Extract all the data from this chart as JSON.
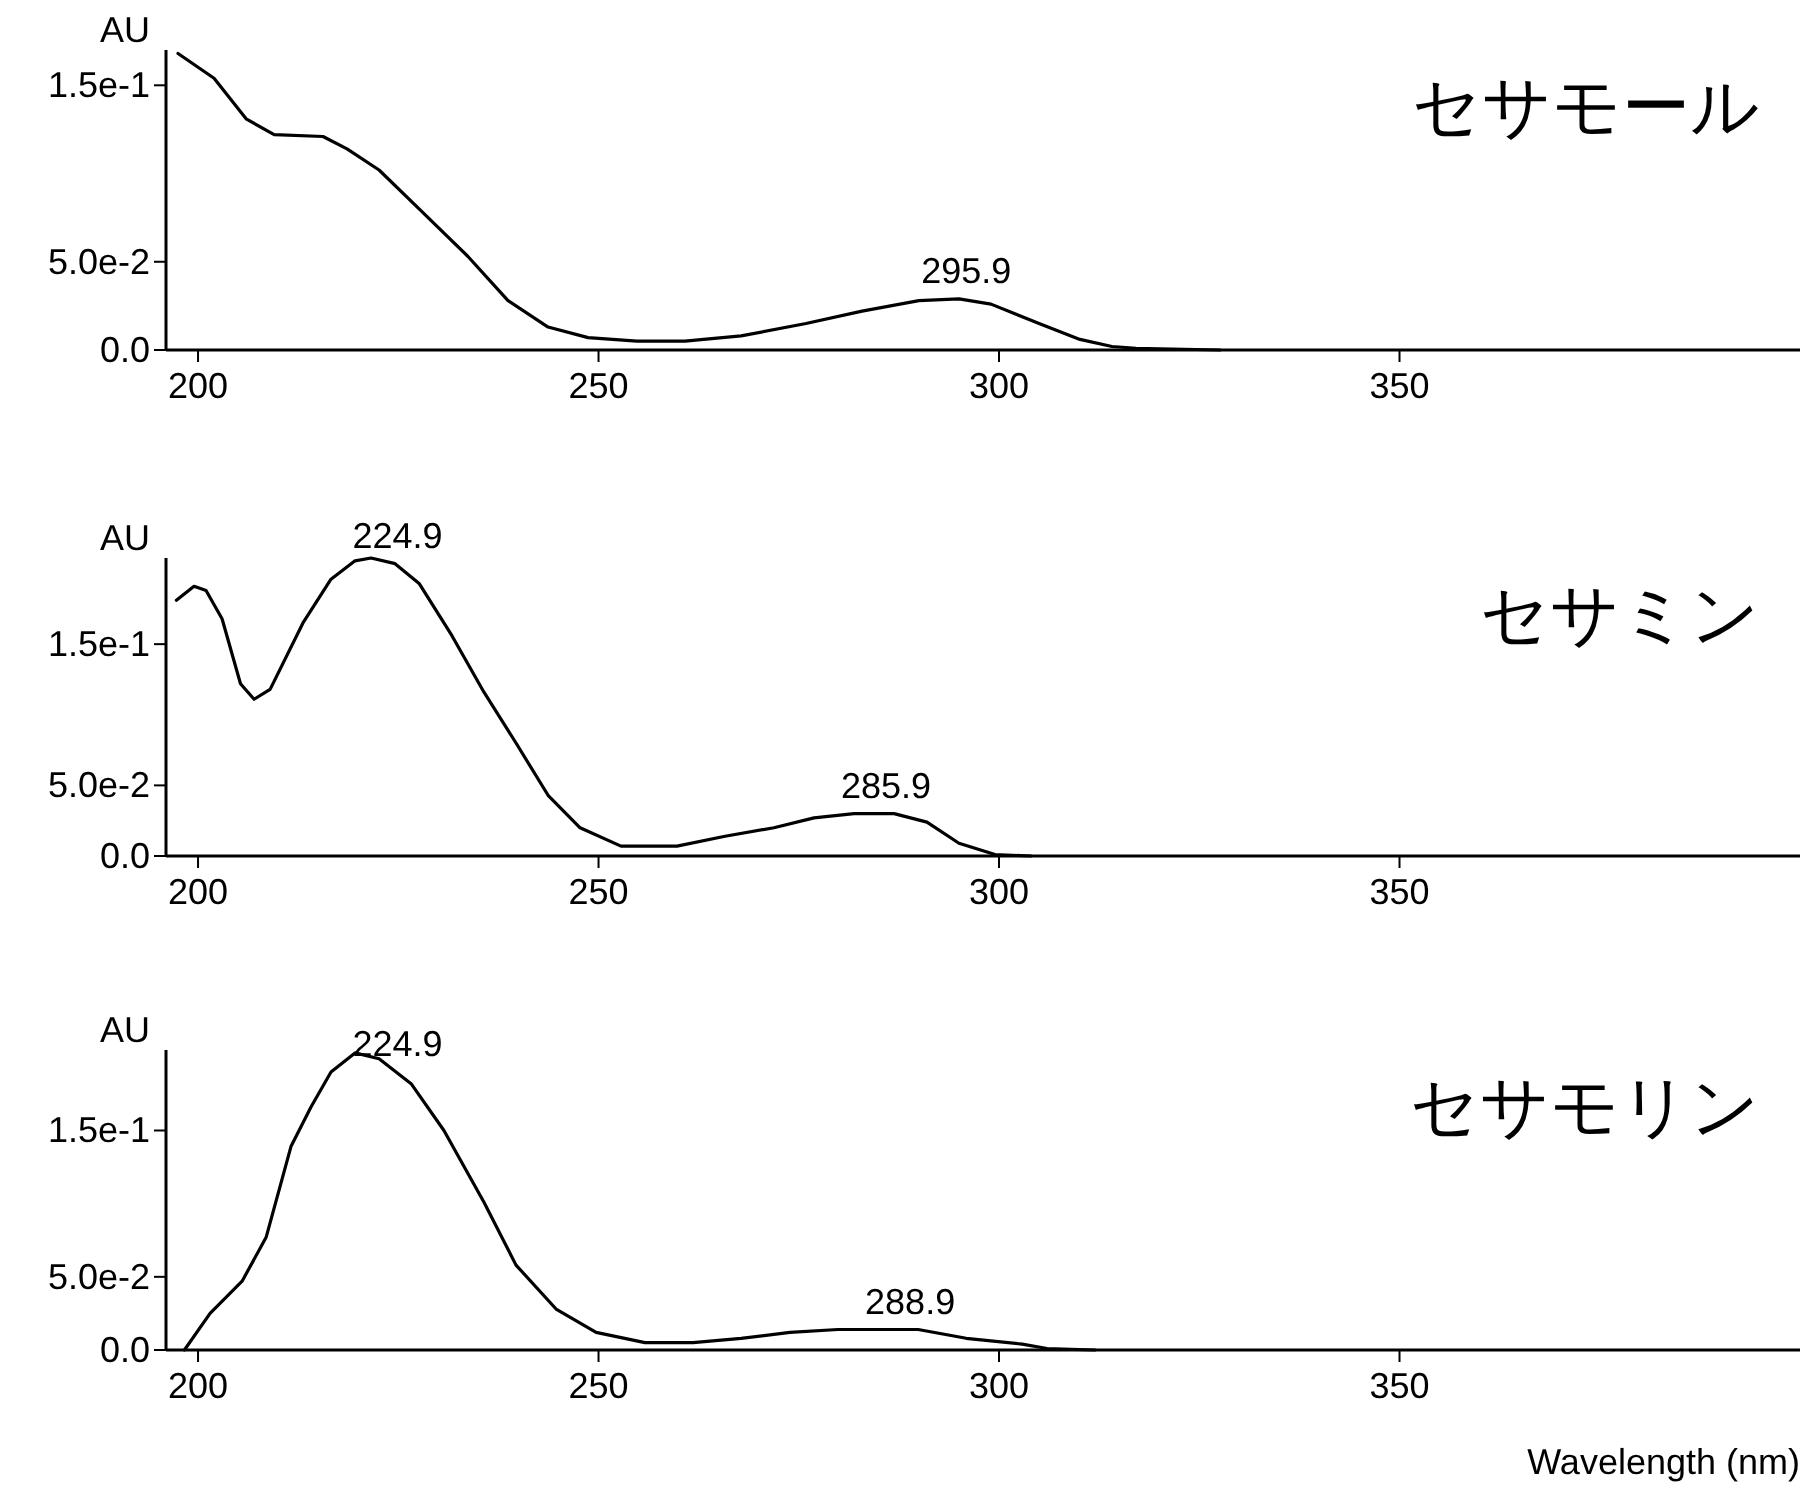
{
  "chart_data": [
    {
      "type": "line",
      "title": "セサモール",
      "ylabel": "AU",
      "xlim": [
        196,
        400
      ],
      "ylim": [
        0,
        0.17
      ],
      "xticks": [
        200,
        250,
        300,
        350
      ],
      "yticks": [
        {
          "value": 0,
          "label": "0.0"
        },
        {
          "value": 0.05,
          "label": "5.0e-2"
        },
        {
          "value": 0.15,
          "label": "1.5e-1"
        }
      ],
      "x": [
        197.5,
        202.0,
        206.0,
        209.5,
        215.6,
        218.6,
        222.6,
        227.6,
        233.7,
        238.7,
        243.7,
        248.7,
        254.8,
        260.8,
        267.8,
        275.9,
        282.9,
        290.0,
        295.0,
        299.0,
        305.0,
        310.1,
        314.1,
        317.1,
        327.6
      ],
      "series": [
        {
          "color": "#000000",
          "values": [
            0.168,
            0.154,
            0.131,
            0.122,
            0.121,
            0.114,
            0.102,
            0.08,
            0.053,
            0.028,
            0.013,
            0.007,
            0.005,
            0.005,
            0.008,
            0.015,
            0.022,
            0.028,
            0.029,
            0.026,
            0.015,
            0.006,
            0.002,
            0.001,
            0.0
          ]
        }
      ],
      "annotations": [
        {
          "text": "295.9",
          "x": 295.9,
          "y": 0.029
        }
      ]
    },
    {
      "type": "line",
      "title": "セサミン",
      "ylabel": "AU",
      "xlim": [
        196,
        400
      ],
      "ylim": [
        0,
        0.211
      ],
      "xticks": [
        200,
        250,
        300,
        350
      ],
      "yticks": [
        {
          "value": 0,
          "label": "0.0"
        },
        {
          "value": 0.05,
          "label": "5.0e-2"
        },
        {
          "value": 0.15,
          "label": "1.5e-1"
        }
      ],
      "x": [
        197.3,
        199.5,
        201.0,
        203.0,
        205.3,
        207.0,
        209.0,
        213.1,
        216.6,
        219.6,
        221.6,
        224.6,
        227.6,
        231.7,
        235.7,
        239.7,
        243.7,
        247.7,
        252.8,
        259.8,
        265.8,
        271.9,
        276.9,
        281.9,
        286.9,
        291.0,
        295.0,
        299.5,
        304.0
      ],
      "series": [
        {
          "color": "#000000",
          "values": [
            0.181,
            0.191,
            0.188,
            0.168,
            0.122,
            0.111,
            0.118,
            0.165,
            0.196,
            0.209,
            0.211,
            0.207,
            0.193,
            0.156,
            0.116,
            0.08,
            0.043,
            0.02,
            0.007,
            0.007,
            0.014,
            0.02,
            0.027,
            0.03,
            0.03,
            0.024,
            0.009,
            0.001,
            0.0
          ]
        }
      ],
      "annotations": [
        {
          "text": "224.9",
          "x": 224.9,
          "y": 0.207
        },
        {
          "text": "285.9",
          "x": 285.9,
          "y": 0.03
        }
      ]
    },
    {
      "type": "line",
      "title": "セサモリン",
      "ylabel": "AU",
      "xlabel": "Wavelength (nm)",
      "xlim": [
        196,
        400
      ],
      "ylim": [
        0,
        0.205
      ],
      "xticks": [
        200,
        250,
        300,
        350
      ],
      "yticks": [
        {
          "value": 0,
          "label": "0.0"
        },
        {
          "value": 0.05,
          "label": "5.0e-2"
        },
        {
          "value": 0.15,
          "label": "1.5e-1"
        }
      ],
      "x": [
        198.3,
        201.5,
        205.5,
        208.5,
        211.6,
        214.1,
        216.6,
        219.6,
        222.6,
        226.6,
        230.7,
        235.7,
        239.7,
        244.7,
        249.7,
        255.8,
        261.8,
        267.8,
        273.9,
        279.9,
        289.9,
        295.9,
        302.9,
        306.0,
        312.0
      ],
      "series": [
        {
          "color": "#000000",
          "values": [
            0.0,
            0.025,
            0.047,
            0.077,
            0.139,
            0.166,
            0.19,
            0.203,
            0.199,
            0.182,
            0.15,
            0.101,
            0.058,
            0.028,
            0.012,
            0.005,
            0.005,
            0.008,
            0.012,
            0.014,
            0.014,
            0.008,
            0.004,
            0.001,
            0.0
          ]
        }
      ],
      "annotations": [
        {
          "text": "224.9",
          "x": 224.9,
          "y": 0.19
        },
        {
          "text": "288.9",
          "x": 288.9,
          "y": 0.014
        }
      ]
    }
  ]
}
